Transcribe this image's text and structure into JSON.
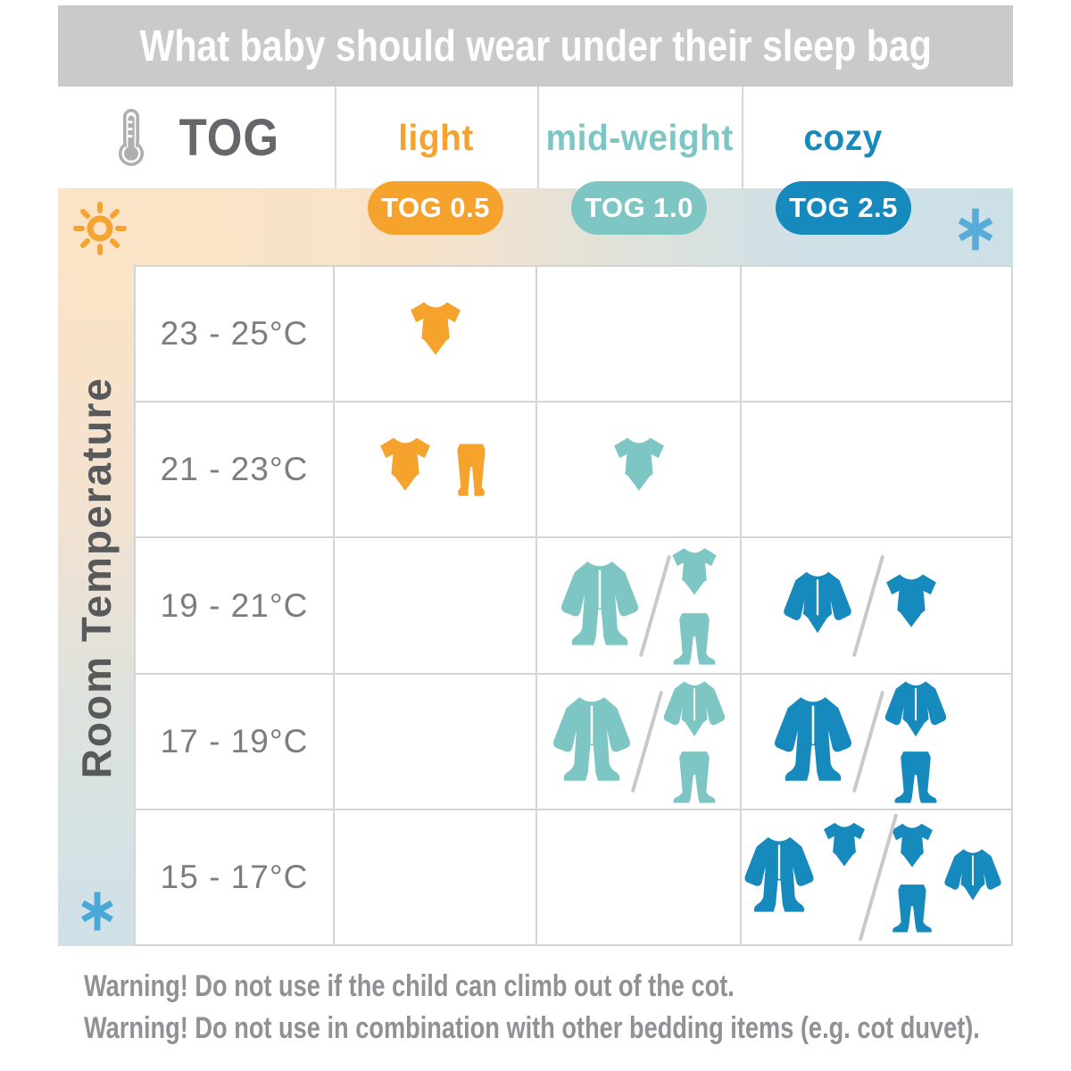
{
  "title": "What baby should wear under their sleep bag",
  "header": {
    "tog_label": "TOG",
    "columns": [
      {
        "id": "light",
        "label": "light",
        "badge": "TOG 0.5",
        "color": "#f5a32c"
      },
      {
        "id": "mid_weight",
        "label": "mid-weight",
        "badge": "TOG 1.0",
        "color": "#7dc6c4"
      },
      {
        "id": "cozy",
        "label": "cozy",
        "badge": "TOG 2.5",
        "color": "#178abd"
      }
    ]
  },
  "side": {
    "axis_label": "Room Temperature",
    "warm_icon": "sun-icon",
    "cold_icon": "snowflake-icon"
  },
  "warnings": [
    "Warning! Do not use if the child can climb out of the cot.",
    "Warning! Do not use in combination with other bedding items (e.g. cot duvet)."
  ],
  "icons": {
    "bodysuit-short": "short-sleeve bodysuit",
    "bodysuit-long": "long-sleeve bodysuit",
    "pants": "pants",
    "pants-footed": "footed pants",
    "sleepsuit": "long-sleeve footed sleepsuit",
    "thermometer": "thermometer-icon",
    "sun": "sun-icon",
    "snowflake": "snowflake-icon"
  },
  "colors": {
    "light": "#f5a32c",
    "mid_weight": "#7dc6c4",
    "cozy": "#178abd",
    "band_warm": "#fbe3c5",
    "band_cool": "#cde0e8",
    "title_bar": "#cacaca",
    "grid_line": "#d4d5d6",
    "text_dark": "#58595b",
    "temp_text": "#7b7d80",
    "warning_text": "#8f9194",
    "snowflake": "#59acd8"
  },
  "chart_data": {
    "type": "table",
    "title": "What baby should wear under their sleep bag",
    "row_axis_label": "Room Temperature",
    "columns": [
      {
        "label": "light",
        "tog": "TOG 0.5"
      },
      {
        "label": "mid-weight",
        "tog": "TOG 1.0"
      },
      {
        "label": "cozy",
        "tog": "TOG 2.5"
      }
    ],
    "rows": [
      {
        "temp": "23 - 25°C",
        "cells": {
          "light": [
            {
              "arr": "h",
              "items": [
                "bodysuit-short"
              ]
            }
          ],
          "mid_weight": [],
          "cozy": []
        }
      },
      {
        "temp": "21 - 23°C",
        "cells": {
          "light": [
            {
              "arr": "h",
              "items": [
                "bodysuit-short",
                "pants"
              ]
            }
          ],
          "mid_weight": [
            {
              "arr": "h",
              "items": [
                "bodysuit-short"
              ]
            }
          ],
          "cozy": []
        }
      },
      {
        "temp": "19 - 21°C",
        "cells": {
          "light": [],
          "mid_weight": [
            {
              "arr": "h",
              "items": [
                "sleepsuit"
              ]
            },
            {
              "arr": "v",
              "items": [
                "bodysuit-short",
                "pants-footed"
              ]
            }
          ],
          "cozy": [
            {
              "arr": "h",
              "items": [
                "bodysuit-long"
              ]
            },
            {
              "arr": "h",
              "items": [
                "bodysuit-short"
              ]
            }
          ]
        }
      },
      {
        "temp": "17 - 19°C",
        "cells": {
          "light": [],
          "mid_weight": [
            {
              "arr": "h",
              "items": [
                "sleepsuit"
              ]
            },
            {
              "arr": "v",
              "items": [
                "bodysuit-long",
                "pants-footed"
              ]
            }
          ],
          "cozy": [
            {
              "arr": "h",
              "items": [
                "sleepsuit"
              ]
            },
            {
              "arr": "v",
              "items": [
                "bodysuit-long",
                "pants-footed"
              ]
            }
          ]
        }
      },
      {
        "temp": "15 - 17°C",
        "cells": {
          "light": [],
          "mid_weight": [],
          "cozy": [
            {
              "arr": "c1",
              "items": [
                "sleepsuit",
                "bodysuit-short"
              ]
            },
            {
              "arr": "c2",
              "items": [
                "bodysuit-short",
                "pants-footed",
                "bodysuit-long"
              ]
            }
          ]
        }
      }
    ]
  }
}
